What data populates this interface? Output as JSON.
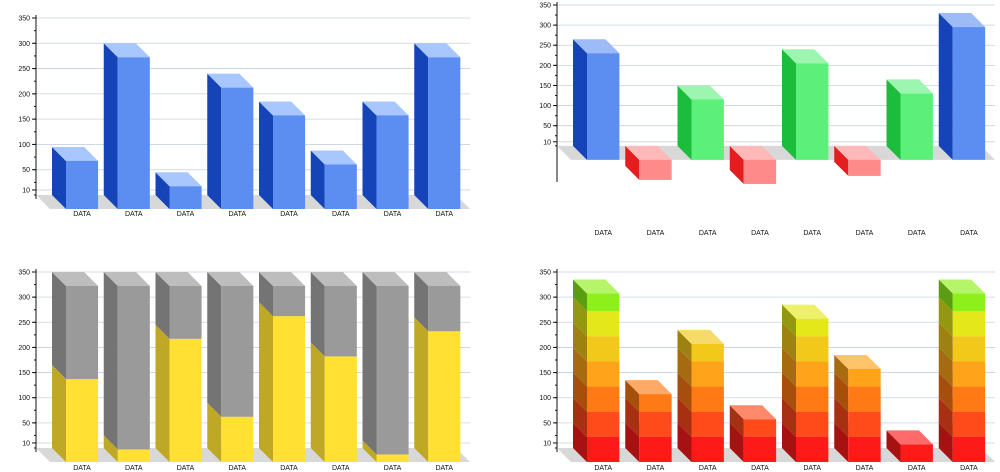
{
  "chart_data": [
    {
      "type": "bar",
      "style": "3d",
      "ylim": [
        0,
        350
      ],
      "yticks": [
        10,
        50,
        100,
        150,
        200,
        250,
        300,
        350
      ],
      "categories": [
        "DATA",
        "DATA",
        "DATA",
        "DATA",
        "DATA",
        "DATA",
        "DATA",
        "DATA"
      ],
      "values": [
        95,
        300,
        45,
        240,
        185,
        88,
        185,
        300
      ],
      "colors": {
        "front": "#5b8ef0",
        "top": "#a8c6ff",
        "side": "#1543b8"
      }
    },
    {
      "type": "bar",
      "style": "3d-floating",
      "baseline": 0,
      "ylim": [
        -80,
        350
      ],
      "yticks": [
        10,
        50,
        100,
        150,
        200,
        250,
        300,
        350
      ],
      "categories": [
        "DATA",
        "DATA",
        "DATA",
        "DATA",
        "DATA",
        "DATA",
        "DATA",
        "DATA"
      ],
      "values": [
        265,
        -50,
        150,
        -60,
        240,
        -40,
        165,
        330
      ],
      "colors": [
        "blue",
        "red",
        "green",
        "red",
        "green",
        "red",
        "green",
        "blue"
      ]
    },
    {
      "type": "bar",
      "style": "3d-stacked",
      "ylim": [
        0,
        350
      ],
      "yticks": [
        10,
        50,
        100,
        150,
        200,
        250,
        300,
        350
      ],
      "categories": [
        "DATA",
        "DATA",
        "DATA",
        "DATA",
        "DATA",
        "DATA",
        "DATA",
        "DATA"
      ],
      "series": [
        {
          "values": [
            165,
            25,
            245,
            90,
            290,
            210,
            15,
            260
          ],
          "color": "#ffe033"
        },
        {
          "values": [
            185,
            325,
            105,
            260,
            60,
            140,
            335,
            90
          ],
          "color": "#9a9a9a"
        }
      ]
    },
    {
      "type": "bar",
      "style": "3d-segmented-gradient",
      "ylim": [
        0,
        350
      ],
      "yticks": [
        10,
        50,
        100,
        150,
        200,
        250,
        300,
        350
      ],
      "categories": [
        "DATA",
        "DATA",
        "DATA",
        "DATA",
        "DATA",
        "DATA",
        "DATA",
        "DATA"
      ],
      "values": [
        335,
        135,
        235,
        85,
        285,
        185,
        35,
        335
      ],
      "segment_colors": [
        "#ff1a1a",
        "#ff4a1a",
        "#ff7a14",
        "#ffa41a",
        "#f2c81a",
        "#e4e81a",
        "#8ef01a",
        "#32d21e"
      ]
    }
  ]
}
